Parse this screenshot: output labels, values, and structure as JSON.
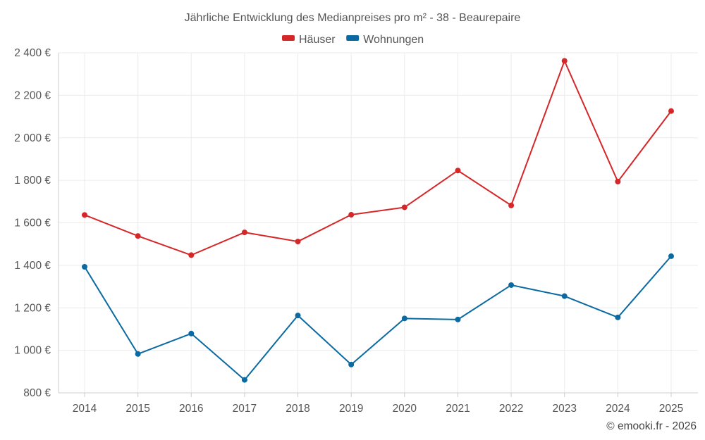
{
  "chart_data": {
    "type": "line",
    "title": "Jährliche Entwicklung des Medianpreises pro m² - 38 - Beaurepaire",
    "xlabel": "",
    "ylabel": "",
    "categories": [
      "2014",
      "2015",
      "2016",
      "2017",
      "2018",
      "2019",
      "2020",
      "2021",
      "2022",
      "2023",
      "2024",
      "2025"
    ],
    "series": [
      {
        "name": "Häuser",
        "color": "#d62728",
        "values": [
          1637,
          1538,
          1448,
          1555,
          1512,
          1638,
          1673,
          1846,
          1682,
          2362,
          1794,
          2126
        ]
      },
      {
        "name": "Wohnungen",
        "color": "#0a6aa1",
        "values": [
          1393,
          983,
          1079,
          861,
          1164,
          933,
          1150,
          1145,
          1307,
          1255,
          1155,
          1443
        ]
      }
    ],
    "ylim": [
      800,
      2400
    ],
    "yticks": [
      800,
      1000,
      1200,
      1400,
      1600,
      1800,
      2000,
      2200,
      2400
    ],
    "ytick_labels": [
      "800 €",
      "1 000 €",
      "1 200 €",
      "1 400 €",
      "1 600 €",
      "1 800 €",
      "2 000 €",
      "2 200 €",
      "2 400 €"
    ],
    "grid": true,
    "legend_position": "top-center"
  },
  "credit": "© emooki.fr - 2026"
}
